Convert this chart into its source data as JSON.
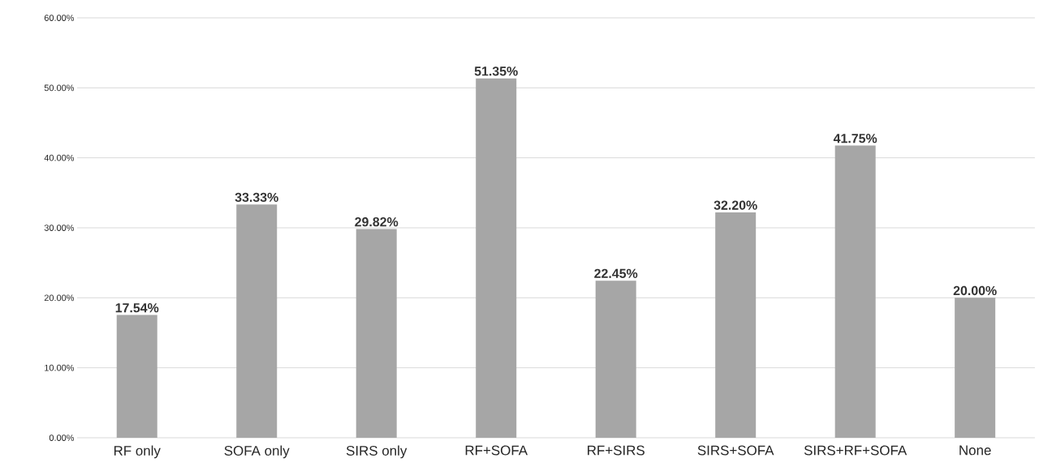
{
  "chart_data": {
    "type": "bar",
    "categories": [
      "RF only",
      "SOFA only",
      "SIRS only",
      "RF+SOFA",
      "RF+SIRS",
      "SIRS+SOFA",
      "SIRS+RF+SOFA",
      "None"
    ],
    "values": [
      17.54,
      33.33,
      29.82,
      51.35,
      22.45,
      32.2,
      41.75,
      20.0
    ],
    "value_labels": [
      "17.54%",
      "33.33%",
      "29.82%",
      "51.35%",
      "22.45%",
      "32.20%",
      "41.75%",
      "20.00%"
    ],
    "color": "#a6a6a6",
    "ylim": [
      0,
      60
    ],
    "yticks": [
      {
        "value": 0,
        "label": "0.00%"
      },
      {
        "value": 10,
        "label": "10.00%"
      },
      {
        "value": 20,
        "label": "20.00%"
      },
      {
        "value": 30,
        "label": "30.00%"
      },
      {
        "value": 40,
        "label": "40.00%"
      },
      {
        "value": 50,
        "label": "50.00%"
      },
      {
        "value": 60,
        "label": "60.00%"
      }
    ],
    "grid": "y"
  }
}
